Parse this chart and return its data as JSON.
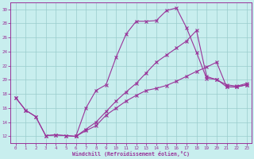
{
  "bg_color": "#c8eeee",
  "grid_color": "#99cccc",
  "line_color": "#993399",
  "xlabel": "Windchill (Refroidissement éolien,°C)",
  "xlim": [
    -0.5,
    23.5
  ],
  "ylim": [
    11,
    31
  ],
  "yticks": [
    12,
    14,
    16,
    18,
    20,
    22,
    24,
    26,
    28,
    30
  ],
  "xticks": [
    0,
    1,
    2,
    3,
    4,
    5,
    6,
    7,
    8,
    9,
    10,
    11,
    12,
    13,
    14,
    15,
    16,
    17,
    18,
    19,
    20,
    21,
    22,
    23
  ],
  "lines": [
    {
      "x": [
        0,
        1,
        2,
        3,
        4,
        5,
        6,
        7,
        8,
        9,
        10,
        11,
        12,
        13,
        14,
        15,
        16,
        17,
        18,
        19,
        20,
        21,
        22,
        23
      ],
      "y": [
        17.5,
        15.7,
        14.8,
        12.1,
        12.2,
        12.1,
        12.0,
        12.8,
        13.5,
        15.0,
        16.0,
        17.0,
        17.8,
        18.5,
        18.8,
        19.2,
        19.8,
        20.5,
        21.2,
        21.8,
        22.5,
        19.0,
        19.0,
        19.3
      ]
    },
    {
      "x": [
        0,
        1,
        2,
        3,
        4,
        5,
        6,
        7,
        8,
        9,
        10,
        11,
        12,
        13,
        14,
        15,
        16,
        17,
        18,
        19,
        20,
        21,
        22,
        23
      ],
      "y": [
        17.5,
        15.7,
        14.8,
        12.1,
        12.2,
        12.1,
        12.0,
        16.0,
        18.5,
        19.3,
        23.2,
        26.5,
        28.3,
        28.3,
        28.4,
        29.8,
        30.2,
        27.4,
        23.9,
        20.2,
        20.1,
        19.0,
        19.0,
        19.3
      ]
    },
    {
      "x": [
        6,
        7,
        8,
        9,
        10,
        11,
        12,
        13,
        14,
        15,
        16,
        17,
        18,
        19,
        20,
        21,
        22,
        23
      ],
      "y": [
        12.0,
        13.0,
        14.0,
        15.5,
        17.0,
        18.3,
        19.5,
        21.0,
        22.5,
        23.5,
        24.5,
        25.5,
        27.0,
        20.5,
        20.0,
        19.3,
        19.1,
        19.5
      ]
    }
  ]
}
